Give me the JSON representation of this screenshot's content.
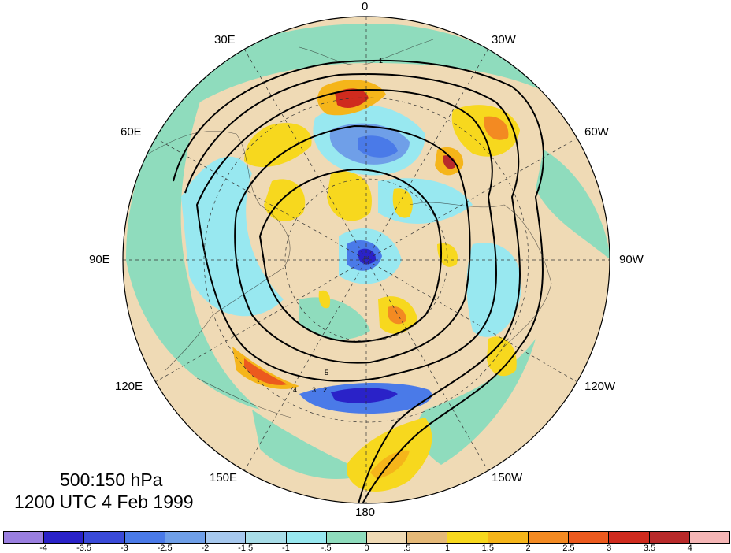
{
  "map": {
    "title_line1": "500:150 hPa",
    "title_line2": "1200 UTC 4 Feb 1999",
    "longitude_labels": [
      "0",
      "30W",
      "60W",
      "90W",
      "120W",
      "150W",
      "180",
      "150E",
      "120E",
      "90E",
      "60E",
      "30E"
    ],
    "contour_labels": [
      "1",
      "2",
      "3",
      "4",
      "5"
    ],
    "colorbar": {
      "colors": [
        "#9a7fe0",
        "#2a22c8",
        "#3a4ad8",
        "#4a7ae8",
        "#6f9fe8",
        "#a6c8ee",
        "#a8dde8",
        "#98e8f0",
        "#8fdcbd",
        "#efdab5",
        "#e5b978",
        "#f7d81e",
        "#f5b51a",
        "#f38a22",
        "#ec5a1e",
        "#cf2b1e",
        "#b82a2a",
        "#f5b6b6"
      ],
      "ticks": [
        "-4",
        "-3.5",
        "-3",
        "-2.5",
        "-2",
        "-1.5",
        "-1",
        "-.5",
        "0",
        ".5",
        "1",
        "1.5",
        "2",
        "2.5",
        "3",
        "3.5",
        "4"
      ]
    }
  }
}
